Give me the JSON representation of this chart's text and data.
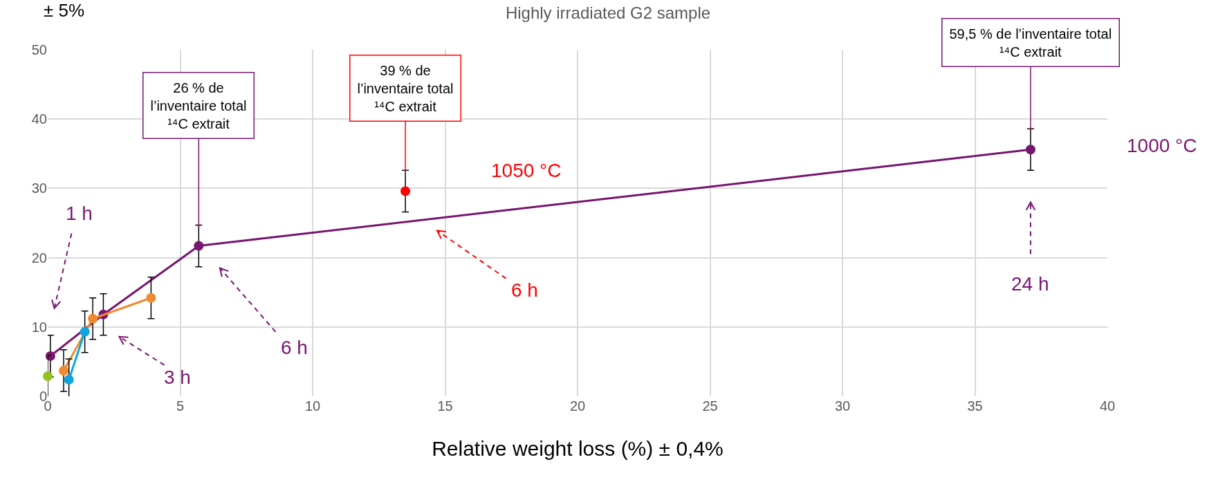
{
  "chart_data": {
    "type": "line",
    "title": "Highly irradiated G2 sample",
    "xlabel": "Relative weight loss (%) ± 0,4%",
    "ylabel": "± 5%",
    "xlim": [
      0,
      40
    ],
    "xticks": [
      0,
      5,
      10,
      15,
      20,
      25,
      30,
      35,
      40
    ],
    "ylim": [
      0,
      50
    ],
    "yticks": [
      0,
      10,
      20,
      30,
      40,
      50
    ],
    "grid": true,
    "legend": false,
    "marker": "circle",
    "line_style": "solid",
    "series": [
      {
        "name": "1000 °C",
        "color": "#77156f",
        "x": [
          0.1,
          2.1,
          5.7,
          37.1
        ],
        "values": [
          5.8,
          11.8,
          21.7,
          35.6
        ],
        "errors": [
          3,
          3,
          3,
          3
        ]
      },
      {
        "color": "#ef8a2e",
        "x": [
          0.6,
          1.7,
          3.9
        ],
        "values": [
          3.7,
          11.2,
          14.2
        ],
        "errors": [
          3,
          3,
          3
        ]
      },
      {
        "color": "#0ea5df",
        "x": [
          0.8,
          1.4
        ],
        "values": [
          2.4,
          9.3
        ],
        "errors": [
          3,
          3
        ]
      },
      {
        "color": "#92c121",
        "x": [
          0
        ],
        "values": [
          2.9
        ],
        "errors": [
          3
        ]
      },
      {
        "name": "1050 °C",
        "color": "#ff0000",
        "x": [
          13.5
        ],
        "values": [
          29.6
        ],
        "errors": [
          3
        ]
      }
    ],
    "annotations": [
      {
        "text": "26 % de\nl’inventaire total\n¹⁴C extrait",
        "x": 5.7,
        "y": 21.7
      },
      {
        "text": "39 % de\nl’inventaire total\n¹⁴C extrait",
        "x": 13.5,
        "y": 29.6
      },
      {
        "text": "59,5 % de l’inventaire total\n¹⁴C extrait",
        "x": 37.1,
        "y": 35.6
      },
      "1 h",
      "3 h",
      "6 h",
      "6 h",
      "24 h"
    ]
  }
}
